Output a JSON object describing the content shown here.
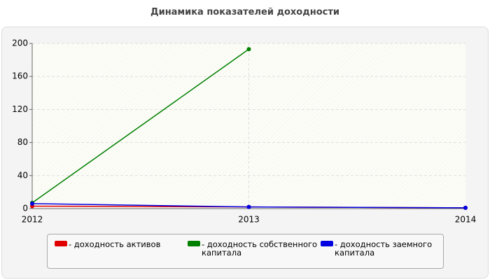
{
  "chart_data": {
    "type": "line",
    "title": "Динамика показателей доходности",
    "categories": [
      "2012",
      "2013",
      "2014"
    ],
    "series": [
      {
        "name": "- доходность активов",
        "color": "#e00000",
        "values": [
          3,
          2,
          1
        ]
      },
      {
        "name": "- доходность собственного капитала",
        "color": "#008000",
        "values": [
          7,
          193,
          null
        ]
      },
      {
        "name": "- доходность заемного капитала",
        "color": "#0000e0",
        "values": [
          6,
          2,
          1
        ]
      }
    ],
    "ylim": [
      0,
      200
    ],
    "yticks": [
      0,
      40,
      80,
      120,
      160,
      200
    ],
    "grid": true
  }
}
